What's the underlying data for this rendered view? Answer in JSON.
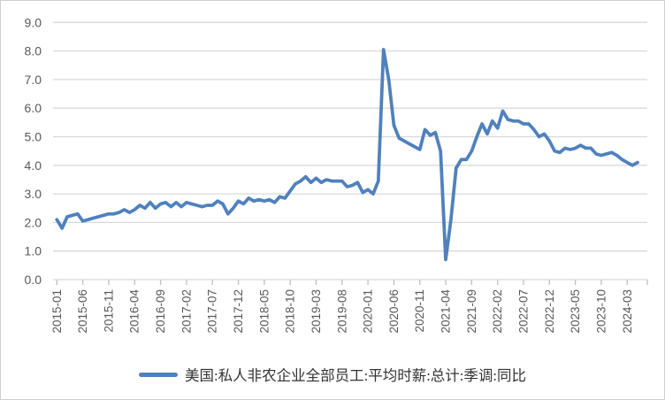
{
  "chart_data": {
    "type": "line",
    "title": "",
    "x_start": "2015-01",
    "x_frequency": "monthly",
    "x_tick_labels": [
      "2015-01",
      "2015-06",
      "2015-11",
      "2016-04",
      "2016-09",
      "2017-02",
      "2017-07",
      "2017-12",
      "2018-05",
      "2018-10",
      "2019-03",
      "2019-08",
      "2020-01",
      "2020-06",
      "2020-11",
      "2021-04",
      "2021-09",
      "2022-02",
      "2022-07",
      "2022-12",
      "2023-05",
      "2023-10",
      "2024-03"
    ],
    "x_tick_interval_months": 5,
    "y_tick_labels": [
      "0.0",
      "1.0",
      "2.0",
      "3.0",
      "4.0",
      "5.0",
      "6.0",
      "7.0",
      "8.0",
      "9.0"
    ],
    "ylim": [
      0,
      9
    ],
    "grid": true,
    "legend_position": "bottom",
    "series": [
      {
        "name": "美国:私人非农企业全部员工:平均时薪:总计:季调:同比",
        "values": [
          2.1,
          1.8,
          2.2,
          2.25,
          2.3,
          2.05,
          2.1,
          2.15,
          2.2,
          2.25,
          2.3,
          2.3,
          2.35,
          2.45,
          2.35,
          2.45,
          2.6,
          2.5,
          2.7,
          2.5,
          2.65,
          2.7,
          2.55,
          2.7,
          2.55,
          2.7,
          2.65,
          2.6,
          2.55,
          2.6,
          2.6,
          2.75,
          2.65,
          2.3,
          2.5,
          2.75,
          2.65,
          2.85,
          2.75,
          2.8,
          2.75,
          2.8,
          2.7,
          2.9,
          2.85,
          3.1,
          3.35,
          3.45,
          3.6,
          3.4,
          3.55,
          3.4,
          3.5,
          3.45,
          3.45,
          3.45,
          3.25,
          3.3,
          3.4,
          3.05,
          3.15,
          3.0,
          3.45,
          8.05,
          7.0,
          5.4,
          4.95,
          4.85,
          4.75,
          4.65,
          4.55,
          5.25,
          5.05,
          5.15,
          4.5,
          0.7,
          2.1,
          3.9,
          4.2,
          4.2,
          4.5,
          5.0,
          5.45,
          5.1,
          5.55,
          5.3,
          5.9,
          5.6,
          5.55,
          5.55,
          5.45,
          5.45,
          5.25,
          5.0,
          5.1,
          4.85,
          4.5,
          4.45,
          4.6,
          4.55,
          4.6,
          4.7,
          4.6,
          4.6,
          4.4,
          4.35,
          4.4,
          4.45,
          4.35,
          4.2,
          4.1,
          4.0,
          4.1
        ]
      }
    ],
    "colors": {
      "line": "#4F81BD",
      "gridline": "#D9D9D9",
      "tick": "#BFBFBF",
      "axis_label": "#595959",
      "legend_text": "#333333",
      "frame_border": "#CFCFCF",
      "background": "#FFFFFF"
    }
  },
  "legend": {
    "label": "美国:私人非农企业全部员工:平均时薪:总计:季调:同比"
  }
}
